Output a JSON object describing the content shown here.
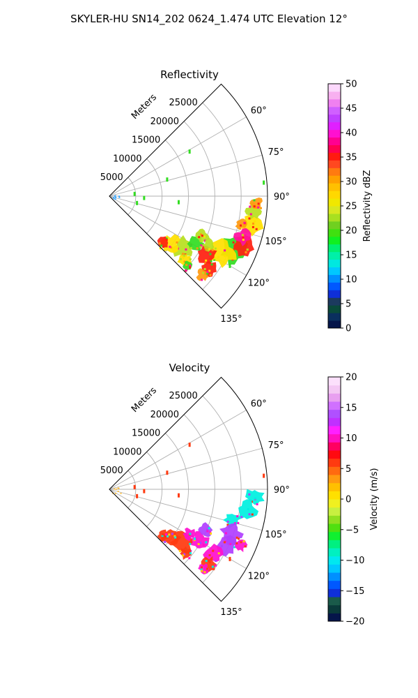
{
  "figure": {
    "suptitle": "SKYLER-HU  SN14_202  0624_1.474 UTC Elevation 12°"
  },
  "chart_data": [
    {
      "type": "heatmap",
      "projection": "polar-sector",
      "title": "Reflectivity",
      "radial_label": "Meters",
      "radial_ticks": [
        5000,
        10000,
        15000,
        20000,
        25000
      ],
      "rlim": [
        0,
        30000
      ],
      "azimuth_ticks": [
        "60°",
        "75°",
        "90°",
        "105°",
        "120°",
        "135°"
      ],
      "azimuth_range_deg": [
        45,
        135
      ],
      "grid": true,
      "colorbar": {
        "label": "Reflectivity dBZ",
        "range": [
          0,
          50
        ],
        "ticks": [
          "0",
          "5",
          "10",
          "15",
          "20",
          "25",
          "30",
          "35",
          "40",
          "45",
          "50"
        ],
        "colors": [
          "#05154a",
          "#0a2f5e",
          "#0a4a3a",
          "#1c3a5e",
          "#0f2fd8",
          "#0058ff",
          "#0090ff",
          "#00c8ff",
          "#00e8e0",
          "#00f0a8",
          "#00f070",
          "#10f020",
          "#40e010",
          "#70d020",
          "#a8e020",
          "#d8e820",
          "#f0e800",
          "#ffd800",
          "#ffc000",
          "#ffa000",
          "#ff7a10",
          "#ff4820",
          "#ff1a10",
          "#ff0050",
          "#ff0090",
          "#ff10d0",
          "#e020ff",
          "#c040ff",
          "#d060ff",
          "#f080f0",
          "#f8b0f0",
          "#fcd8fc"
        ]
      },
      "echo_colors": {
        "low": "#33dd22",
        "mid": "#b8e020",
        "high": "#ffe000",
        "peak": "#ff9a10",
        "core": "#ff2010",
        "max": "#ff10a0"
      }
    },
    {
      "type": "heatmap",
      "projection": "polar-sector",
      "title": "Velocity",
      "radial_label": "Meters",
      "radial_ticks": [
        5000,
        10000,
        15000,
        20000,
        25000
      ],
      "rlim": [
        0,
        30000
      ],
      "azimuth_ticks": [
        "60°",
        "75°",
        "90°",
        "105°",
        "120°",
        "135°"
      ],
      "azimuth_range_deg": [
        45,
        135
      ],
      "grid": true,
      "colorbar": {
        "label": "Velocity (m/s)",
        "range": [
          -20,
          20
        ],
        "ticks": [
          "−20",
          "−15",
          "−10",
          "−5",
          "0",
          "5",
          "10",
          "15",
          "20"
        ],
        "colors": [
          "#05154a",
          "#0a3a3a",
          "#1a5a4a",
          "#0f2fd8",
          "#0058ff",
          "#0090ff",
          "#00c8ff",
          "#00e8f0",
          "#00f0c0",
          "#00f080",
          "#10f030",
          "#50e010",
          "#90e020",
          "#c8f040",
          "#f0f020",
          "#ffe000",
          "#ffc000",
          "#ff9a10",
          "#ff6a10",
          "#ff3a10",
          "#ff0a10",
          "#ff0060",
          "#ff10c0",
          "#ff20ff",
          "#c030ff",
          "#b050ff",
          "#d070ff",
          "#e8a0f0",
          "#f4c8f4",
          "#fce0fc"
        ]
      },
      "echo_colors": {
        "approach": "#00f0e0",
        "near_zero": "#ffd000",
        "recede": "#ff3a10",
        "strong_recede": "#ff10d0",
        "max_recede": "#b040ff"
      }
    }
  ]
}
